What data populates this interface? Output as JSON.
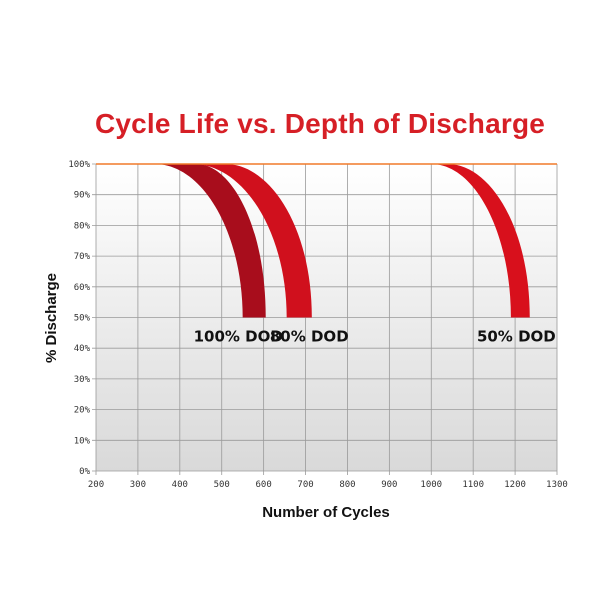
{
  "chart_data": {
    "type": "line",
    "title": "Cycle Life vs. Depth of Discharge",
    "xlabel": "Number of Cycles",
    "ylabel": "% Discharge",
    "xlim": [
      200,
      1300
    ],
    "ylim": [
      0,
      100
    ],
    "x_ticks": [
      "200",
      "300",
      "400",
      "500",
      "600",
      "700",
      "800",
      "900",
      "1000",
      "1100",
      "1200",
      "1300"
    ],
    "y_ticks": [
      "0%",
      "10%",
      "20%",
      "30%",
      "40%",
      "50%",
      "60%",
      "70%",
      "80%",
      "90%",
      "100%"
    ],
    "grid": true,
    "series": [
      {
        "name": "100% DOD",
        "color": "#a80d1c",
        "start_cycles": [
          340,
          440
        ],
        "end_cycles": [
          550,
          605
        ],
        "end_percent": 50
      },
      {
        "name": "80% DOD",
        "color": "#d0101d",
        "start_cycles": [
          430,
          510
        ],
        "end_cycles": [
          655,
          715
        ],
        "end_percent": 50
      },
      {
        "name": "50% DOD",
        "color": "#d8101c",
        "start_cycles": [
          1000,
          1040
        ],
        "end_cycles": [
          1190,
          1235
        ],
        "end_percent": 50
      }
    ],
    "reference_line": {
      "y": 100,
      "color": "#f07a2a"
    },
    "background_gradient": [
      "#ffffff",
      "#d9d9d9"
    ]
  }
}
